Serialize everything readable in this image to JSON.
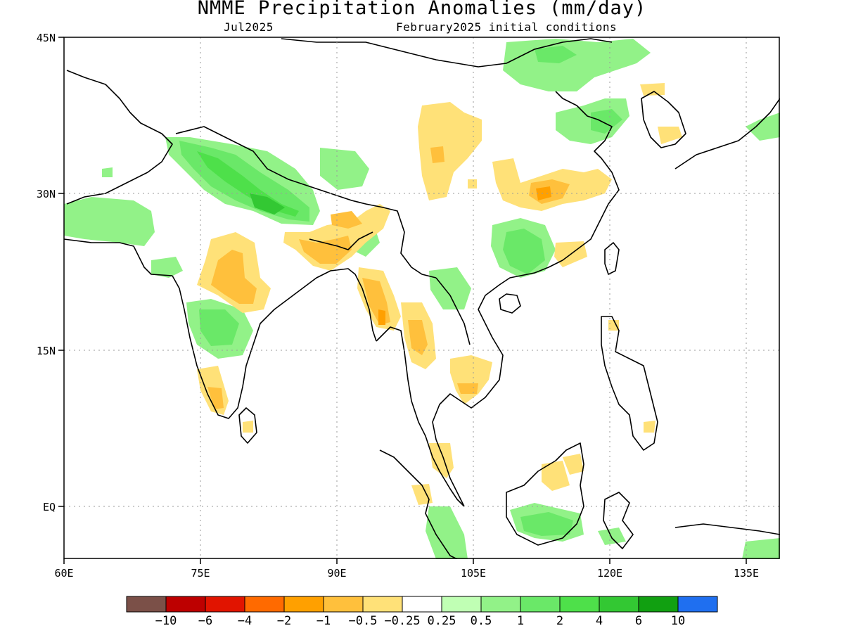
{
  "header": {
    "title": "NMME Precipitation Anomalies (mm/day)",
    "valid_month": "Jul2025",
    "init_label": "February2025 initial conditions"
  },
  "map": {
    "lon_ticks": [
      "60E",
      "75E",
      "90E",
      "105E",
      "120E",
      "135E"
    ],
    "lat_ticks": [
      "45N",
      "30N",
      "15N",
      "EQ"
    ]
  },
  "colorbar": {
    "colors": [
      "#7b5048",
      "#bd0000",
      "#e11400",
      "#ff6a00",
      "#ffa000",
      "#ffc03c",
      "#ffe178",
      "#ffffff",
      "#c0ffb4",
      "#92f288",
      "#6ae868",
      "#4ee04a",
      "#33c833",
      "#11a011",
      "#1f6ff0"
    ],
    "labels": [
      "-10",
      "-6",
      "-4",
      "-2",
      "-1",
      "-0.5",
      "-0.25",
      "0.25",
      "0.5",
      "1",
      "2",
      "4",
      "6",
      "10"
    ]
  }
}
